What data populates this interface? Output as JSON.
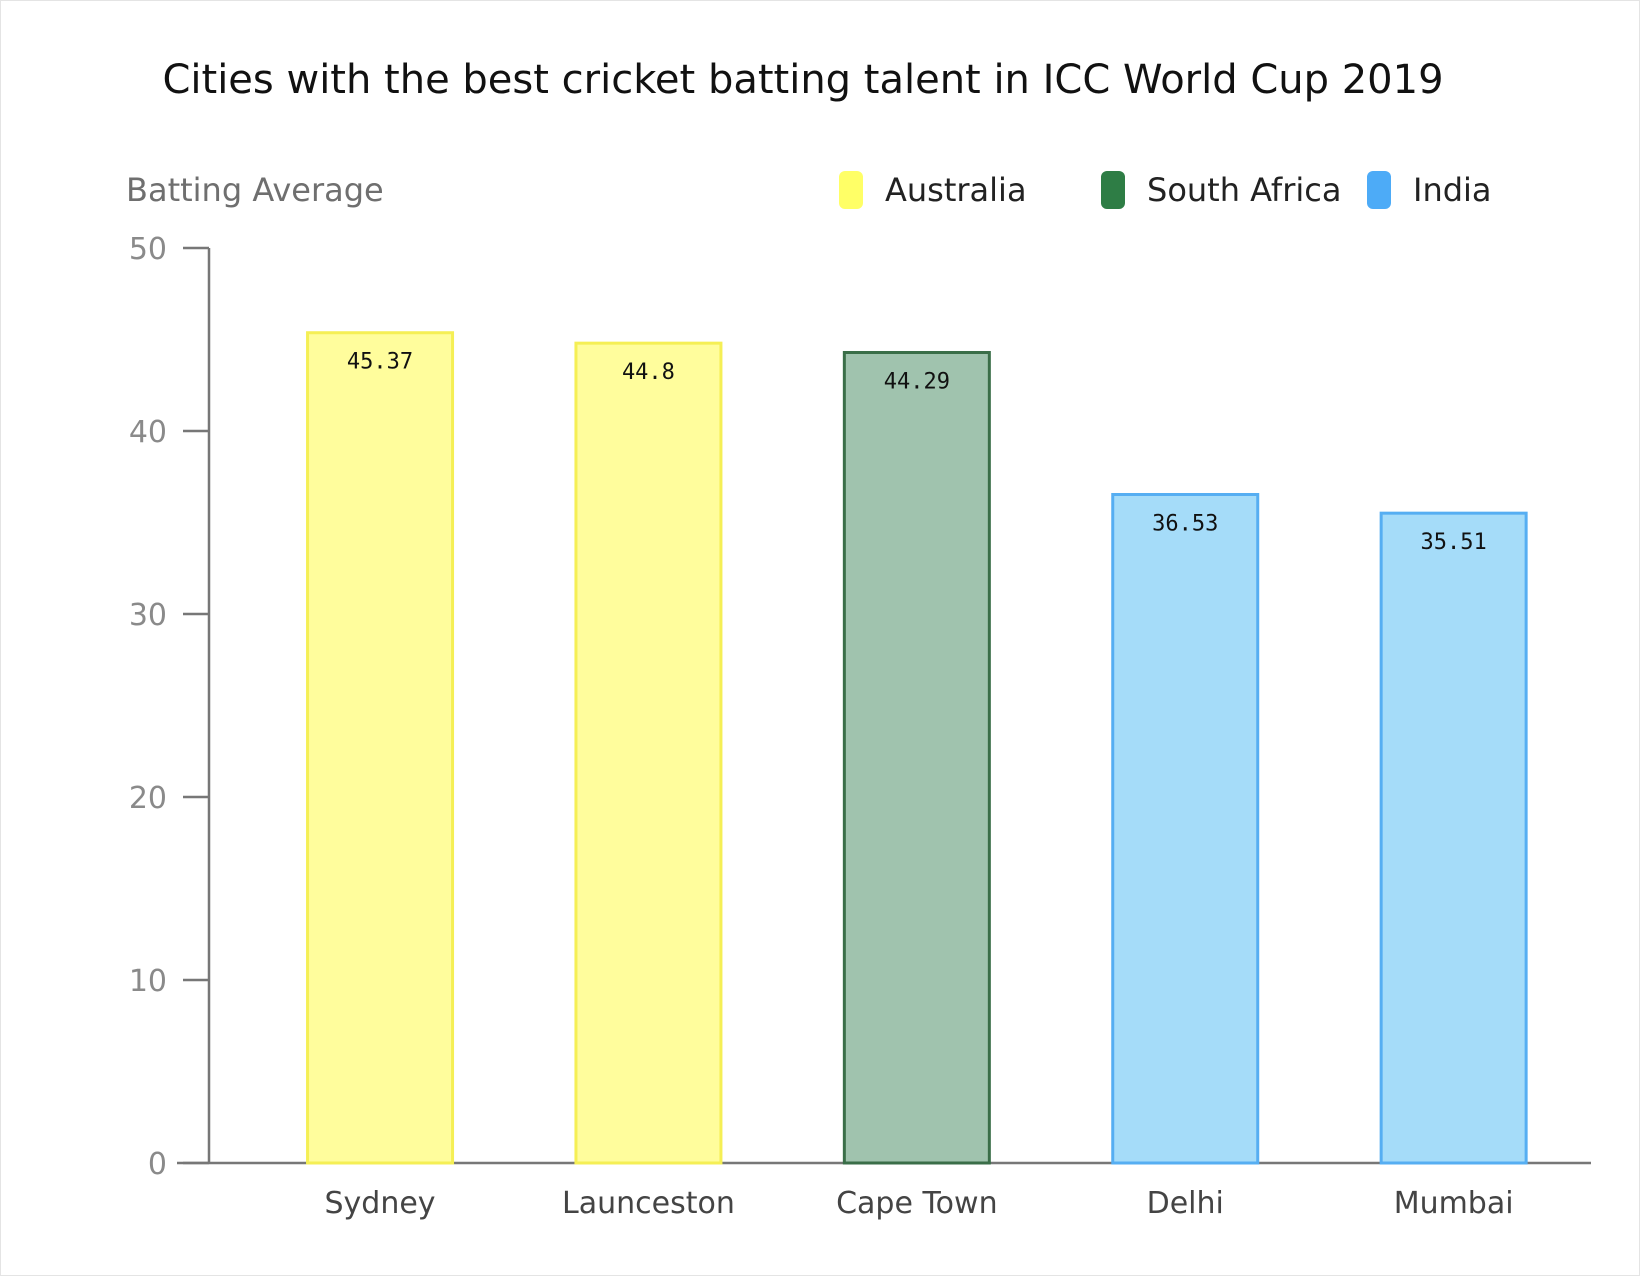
{
  "chart_data": {
    "type": "bar",
    "title": "Cities with the best cricket batting talent in ICC World Cup 2019",
    "ylabel": "Batting Average",
    "xlabel": "",
    "ylim": [
      0,
      50
    ],
    "yticks": [
      "0",
      "10",
      "20",
      "30",
      "40",
      "50"
    ],
    "grid": false,
    "legend_position": "top-right",
    "categories": [
      "Sydney",
      "Launceston",
      "Cape Town",
      "Delhi",
      "Mumbai"
    ],
    "values": [
      45.37,
      44.8,
      44.29,
      36.53,
      35.51
    ],
    "value_labels": [
      "45.37",
      "44.8",
      "44.29",
      "36.53",
      "35.51"
    ],
    "bar_groups": [
      "Australia",
      "Australia",
      "South Africa",
      "India",
      "India"
    ],
    "legend": [
      {
        "name": "Australia",
        "color": "#ffff66"
      },
      {
        "name": "South Africa",
        "color": "#2e7d45"
      },
      {
        "name": "India",
        "color": "#4dabf7"
      }
    ],
    "bar_fills": {
      "Australia": "#fffd9c",
      "South Africa": "#a0c3ae",
      "India": "#a5dcf9"
    },
    "bar_strokes": {
      "Australia": "#f5ef55",
      "South Africa": "#3a6e48",
      "India": "#56aef2"
    }
  }
}
